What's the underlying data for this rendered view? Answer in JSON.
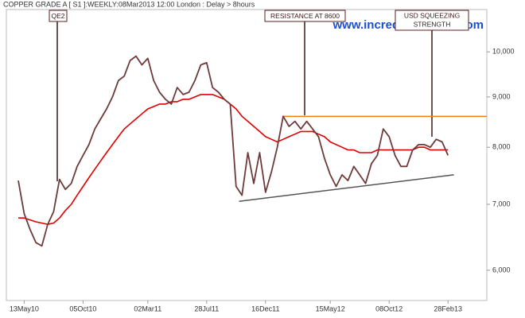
{
  "chart_data": {
    "type": "line",
    "title": "COPPER GRADE A [ S1 ]:WEEKLY:08Mar2013 12:00 London : Delay > 8hours",
    "watermark": "www.incrediblecharts.com",
    "log_scale": true,
    "categories": [
      null,
      "13May10",
      null,
      null,
      null,
      null,
      null,
      null,
      null,
      null,
      null,
      "05Oct10",
      null,
      null,
      null,
      null,
      null,
      null,
      null,
      null,
      null,
      null,
      "02Mar11",
      null,
      null,
      null,
      null,
      null,
      null,
      null,
      null,
      null,
      "28Jul11",
      null,
      null,
      null,
      null,
      null,
      null,
      null,
      null,
      null,
      "16Dec11",
      null,
      null,
      null,
      null,
      null,
      null,
      null,
      null,
      null,
      null,
      "15May12",
      null,
      null,
      null,
      null,
      null,
      null,
      null,
      null,
      null,
      "08Oct12",
      null,
      null,
      null,
      null,
      null,
      null,
      null,
      null,
      null,
      "28Feb13"
    ],
    "series": [
      {
        "name": "Price",
        "color": "#6e3a3a",
        "values": [
          7400,
          6850,
          6600,
          6400,
          6350,
          6680,
          6880,
          7420,
          7250,
          7350,
          7650,
          7850,
          8050,
          8350,
          8550,
          8750,
          9000,
          9350,
          9450,
          9800,
          9900,
          9700,
          9850,
          9350,
          9100,
          8950,
          8850,
          9200,
          9050,
          9100,
          9350,
          9700,
          9750,
          9200,
          9100,
          8950,
          8850,
          7300,
          7150,
          7900,
          7350,
          7900,
          7200,
          7550,
          8000,
          8600,
          8400,
          8500,
          8350,
          8500,
          8350,
          8200,
          7800,
          7500,
          7300,
          7500,
          7400,
          7650,
          7500,
          7350,
          7700,
          7850,
          8350,
          8200,
          7850,
          7650,
          7650,
          7950,
          8050,
          8050,
          8000,
          8150,
          8100,
          7850
        ]
      },
      {
        "name": "Moving average",
        "color": "#e00000",
        "values": [
          6780,
          6780,
          6750,
          6720,
          6700,
          6680,
          6700,
          6780,
          6900,
          7000,
          7150,
          7300,
          7450,
          7600,
          7750,
          7900,
          8050,
          8200,
          8350,
          8450,
          8550,
          8650,
          8750,
          8800,
          8850,
          8850,
          8900,
          8900,
          8950,
          8950,
          9000,
          9050,
          9050,
          9050,
          9000,
          8950,
          8850,
          8750,
          8600,
          8500,
          8400,
          8300,
          8200,
          8150,
          8100,
          8150,
          8200,
          8250,
          8300,
          8300,
          8300,
          8250,
          8200,
          8100,
          8050,
          8000,
          7950,
          7950,
          7900,
          7900,
          7900,
          7950,
          7950,
          7950,
          7950,
          7950,
          7950,
          7950,
          8000,
          8000,
          7950,
          7950,
          7950,
          7950
        ]
      }
    ],
    "resistance": {
      "value": 8600,
      "color": "#f08000"
    },
    "support": {
      "start": 7050,
      "end": 7500,
      "color": "#555555"
    },
    "annotations": [
      [
        "QE2"
      ],
      [
        "RESISTANCE AT 8600"
      ],
      [
        "USD SQUEEZING",
        "STRENGTH"
      ]
    ],
    "ylim": [
      5600,
      11000
    ],
    "yticks": [
      {
        "value": 6000,
        "label": "6,000"
      },
      {
        "value": 7000,
        "label": "7,000"
      },
      {
        "value": 8000,
        "label": "8,000"
      },
      {
        "value": 9000,
        "label": "9,000"
      },
      {
        "value": 10000,
        "label": "10,000"
      }
    ]
  }
}
